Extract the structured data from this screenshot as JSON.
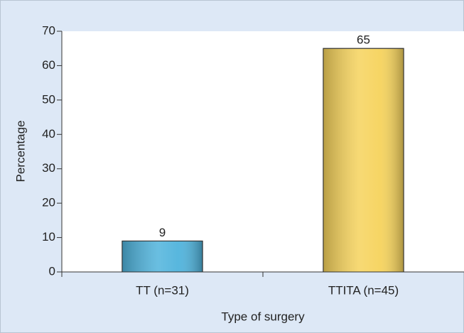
{
  "chart_data": {
    "type": "bar",
    "categories": [
      "TT (n=31)",
      "TTITA (n=45)"
    ],
    "values": [
      9,
      65
    ],
    "colors": [
      "#4fb3dc",
      "#f6d35c"
    ],
    "xlabel": "Type of surgery",
    "ylabel": "Percentage",
    "ylim": [
      0,
      70
    ],
    "yticks": [
      0,
      10,
      20,
      30,
      40,
      50,
      60,
      70
    ]
  }
}
